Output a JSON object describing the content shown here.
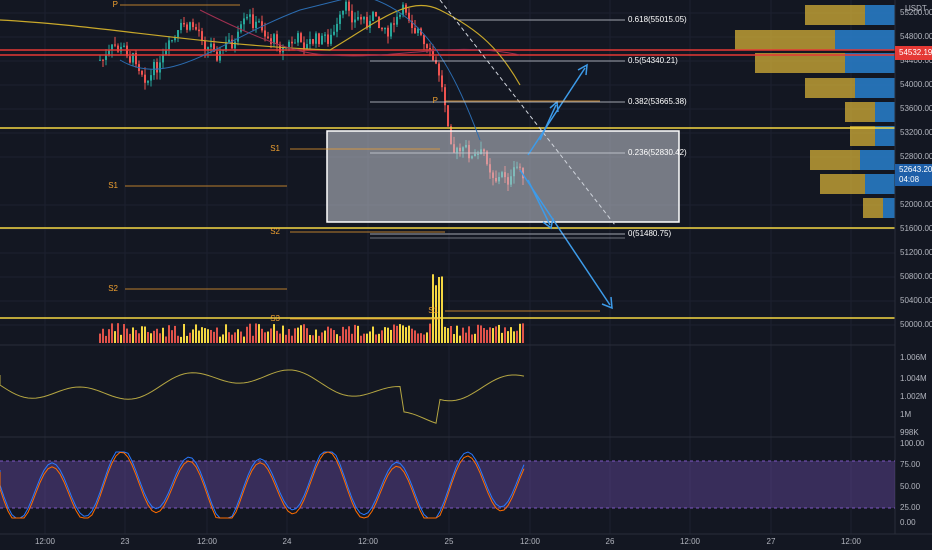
{
  "price_axis": {
    "currency": "USDT",
    "labels": [
      "55200.00",
      "54800.00",
      "54400.00",
      "54000.00",
      "53600.00",
      "53200.00",
      "52800.00",
      "52000.00",
      "51600.00",
      "51200.00",
      "50800.00",
      "50400.00",
      "50000.00"
    ],
    "alert_tag": "54532.19",
    "last_price_tag": "52643.20",
    "countdown": "04:08"
  },
  "fib_levels": [
    "0.618(55015.05)",
    "0.5(54340.21)",
    "0.382(53665.38)",
    "0.236(52830.42)",
    "0(51480.75)"
  ],
  "pivots": [
    "P",
    "P",
    "S1",
    "S1",
    "S2",
    "S2",
    "S3",
    "S1"
  ],
  "indicator_axis": [
    "1.006M",
    "1.004M",
    "1.002M",
    "1M",
    "998K"
  ],
  "stoch_axis": [
    "100.00",
    "75.00",
    "50.00",
    "25.00",
    "0.00"
  ],
  "time_axis": [
    "12:00",
    "23",
    "12:00",
    "24",
    "12:00",
    "25",
    "12:00",
    "26",
    "12:00",
    "27",
    "12:00"
  ]
}
